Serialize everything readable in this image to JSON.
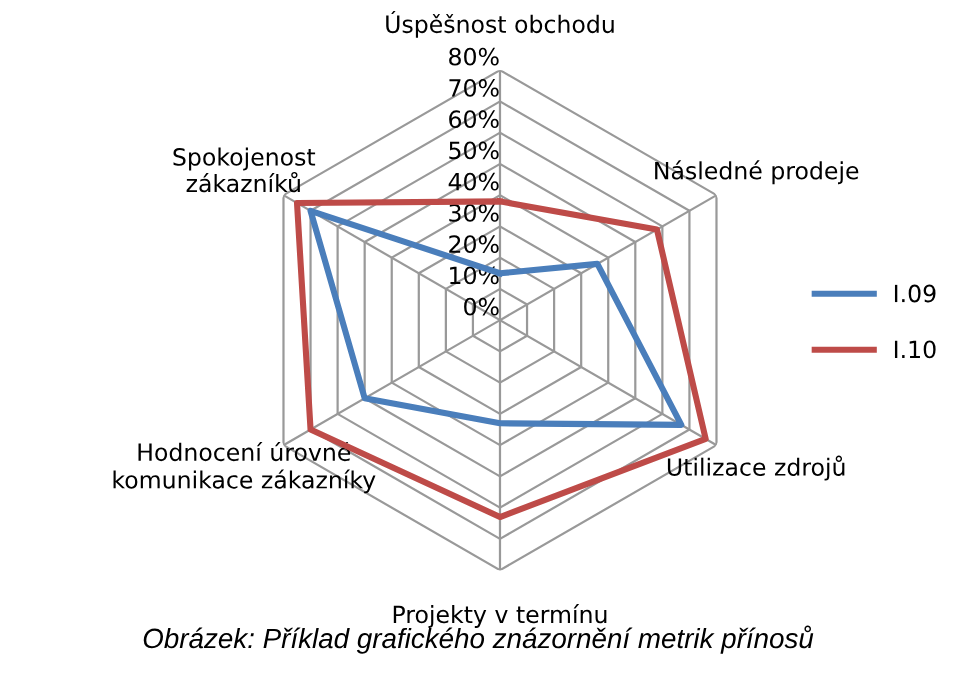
{
  "chart_data": {
    "type": "radar",
    "categories": [
      "Úspěšnost obchodu",
      "Následné prodeje",
      "Utilizace zdrojů",
      "Projekty v termínu",
      "Hodnocení úrovně\nkomunikace zákazníky",
      "Spokojenost\nzákazníků"
    ],
    "series": [
      {
        "name": "I.09",
        "color": "#4a7ebb",
        "values": [
          15,
          36,
          67,
          33,
          50,
          70
        ]
      },
      {
        "name": "I.10",
        "color": "#be4b48",
        "values": [
          38,
          58,
          76,
          63,
          70,
          75
        ]
      }
    ],
    "ylim": [
      0,
      80
    ],
    "yticks": [
      {
        "value": 0,
        "label": "0%"
      },
      {
        "value": 10,
        "label": "10%"
      },
      {
        "value": 20,
        "label": "20%"
      },
      {
        "value": 30,
        "label": "30%"
      },
      {
        "value": 40,
        "label": "40%"
      },
      {
        "value": 50,
        "label": "50%"
      },
      {
        "value": 60,
        "label": "60%"
      },
      {
        "value": 70,
        "label": "70%"
      },
      {
        "value": 80,
        "label": "80%"
      }
    ],
    "grid": true,
    "legend": "right",
    "marker": "none",
    "line_style": "solid",
    "annotations": [
      "Obrázek: Příklad grafického znázornění metrik přínosů"
    ]
  }
}
